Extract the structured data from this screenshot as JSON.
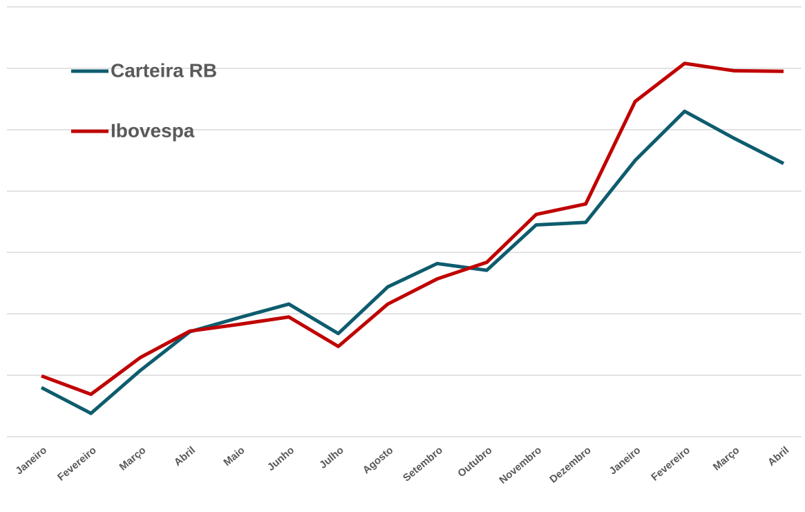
{
  "chart_data": {
    "type": "line",
    "categories": [
      "Janeiro",
      "Fevereiro",
      "Março",
      "Abril",
      "Maio",
      "Junho",
      "Julho",
      "Agosto",
      "Setembro",
      "Outubro",
      "Novembro",
      "Dezembro",
      "Janeiro",
      "Fevereiro",
      "Março",
      "Abril"
    ],
    "series": [
      {
        "name": "Carteira RB",
        "color": "#0e5c6e",
        "values": [
          0.8,
          0.38,
          1.08,
          1.71,
          1.94,
          2.16,
          1.68,
          2.44,
          2.82,
          2.71,
          3.45,
          3.49,
          4.5,
          5.3,
          4.86,
          4.45
        ]
      },
      {
        "name": "Ibovespa",
        "color": "#c00000",
        "values": [
          0.99,
          0.69,
          1.29,
          1.72,
          1.83,
          1.95,
          1.47,
          2.16,
          2.57,
          2.84,
          3.62,
          3.79,
          5.46,
          6.08,
          5.96,
          5.95
        ]
      }
    ],
    "ylim": [
      0,
      7
    ],
    "yticks": [
      0,
      1,
      2,
      3,
      4,
      5,
      6,
      7
    ],
    "grid": true,
    "legend": "upper left"
  }
}
